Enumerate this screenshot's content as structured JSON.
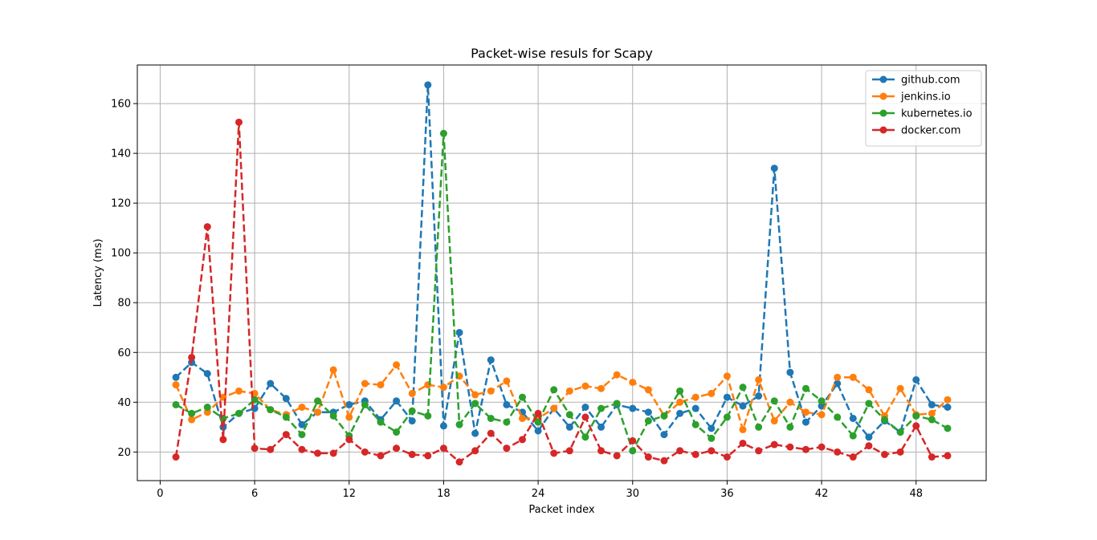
{
  "chart_data": {
    "type": "line",
    "title": "Packet-wise resuls for Scapy",
    "xlabel": "Packet index",
    "ylabel": "Latency (ms)",
    "xlim": [
      -1.45,
      52.45
    ],
    "ylim": [
      8.5,
      175.5
    ],
    "xticks": [
      0,
      6,
      12,
      18,
      24,
      30,
      36,
      42,
      48
    ],
    "yticks": [
      20,
      40,
      60,
      80,
      100,
      120,
      140,
      160
    ],
    "grid": true,
    "legend_position": "top-right",
    "x": [
      1,
      2,
      3,
      4,
      5,
      6,
      7,
      8,
      9,
      10,
      11,
      12,
      13,
      14,
      15,
      16,
      17,
      18,
      19,
      20,
      21,
      22,
      23,
      24,
      25,
      26,
      27,
      28,
      29,
      30,
      31,
      32,
      33,
      34,
      35,
      36,
      37,
      38,
      39,
      40,
      41,
      42,
      43,
      44,
      45,
      46,
      47,
      48,
      49,
      50
    ],
    "series": [
      {
        "name": "github.com",
        "color": "#1f77b4",
        "values": [
          50,
          56,
          51.5,
          30,
          35.5,
          37.5,
          47.5,
          41.5,
          31,
          36,
          36,
          39,
          40.5,
          33,
          40.5,
          32.5,
          167.5,
          30.5,
          68,
          27.5,
          57,
          39,
          36,
          28.5,
          37.5,
          30,
          38,
          30,
          39,
          37.5,
          36,
          27,
          35.5,
          37.5,
          29.5,
          42,
          38.5,
          42.5,
          134,
          52,
          32,
          38.5,
          47.5,
          33.5,
          26,
          32.5,
          28,
          49,
          39,
          38
        ]
      },
      {
        "name": "jenkins.io",
        "color": "#ff7f0e",
        "values": [
          47,
          33,
          36,
          42,
          44.5,
          43.5,
          37,
          35,
          38,
          36,
          53,
          34,
          47.5,
          47,
          55,
          43.5,
          47,
          46,
          50.5,
          43,
          44.5,
          48.5,
          33.5,
          33.5,
          37.5,
          44.5,
          46.5,
          45.5,
          51,
          48,
          45,
          34.5,
          40,
          42,
          43.5,
          50.5,
          29,
          49,
          32.5,
          40,
          36,
          35,
          50,
          50,
          45,
          34.5,
          45.5,
          35,
          35.5,
          41
        ]
      },
      {
        "name": "kubernetes.io",
        "color": "#2ca02c",
        "values": [
          39,
          35.5,
          38,
          33.5,
          35.5,
          41,
          37,
          34,
          27,
          40.5,
          34.5,
          26.5,
          39,
          32,
          28,
          36.5,
          34.5,
          148,
          31,
          39.5,
          33.5,
          32,
          42,
          32,
          45,
          35,
          26,
          37.5,
          39.5,
          20.5,
          32.5,
          34.5,
          44.5,
          31,
          25.5,
          34,
          46,
          30,
          40.5,
          30,
          45.5,
          40.5,
          34,
          26.5,
          39.5,
          33,
          28,
          34.5,
          33,
          29.5
        ]
      },
      {
        "name": "docker.com",
        "color": "#d62728",
        "values": [
          18,
          58,
          110.5,
          25,
          152.5,
          21.5,
          21,
          27,
          21,
          19.5,
          19.5,
          25,
          20,
          18.5,
          21.5,
          19,
          18.5,
          21.5,
          16,
          20.5,
          27.5,
          21.5,
          25,
          35.5,
          19.5,
          20.5,
          34,
          20.5,
          18.5,
          24.5,
          18,
          16.5,
          20.5,
          19,
          20.5,
          18,
          23.5,
          20.5,
          23,
          22,
          21,
          22,
          20,
          18,
          22.5,
          19,
          20,
          30.5,
          18,
          18.5
        ]
      }
    ]
  }
}
